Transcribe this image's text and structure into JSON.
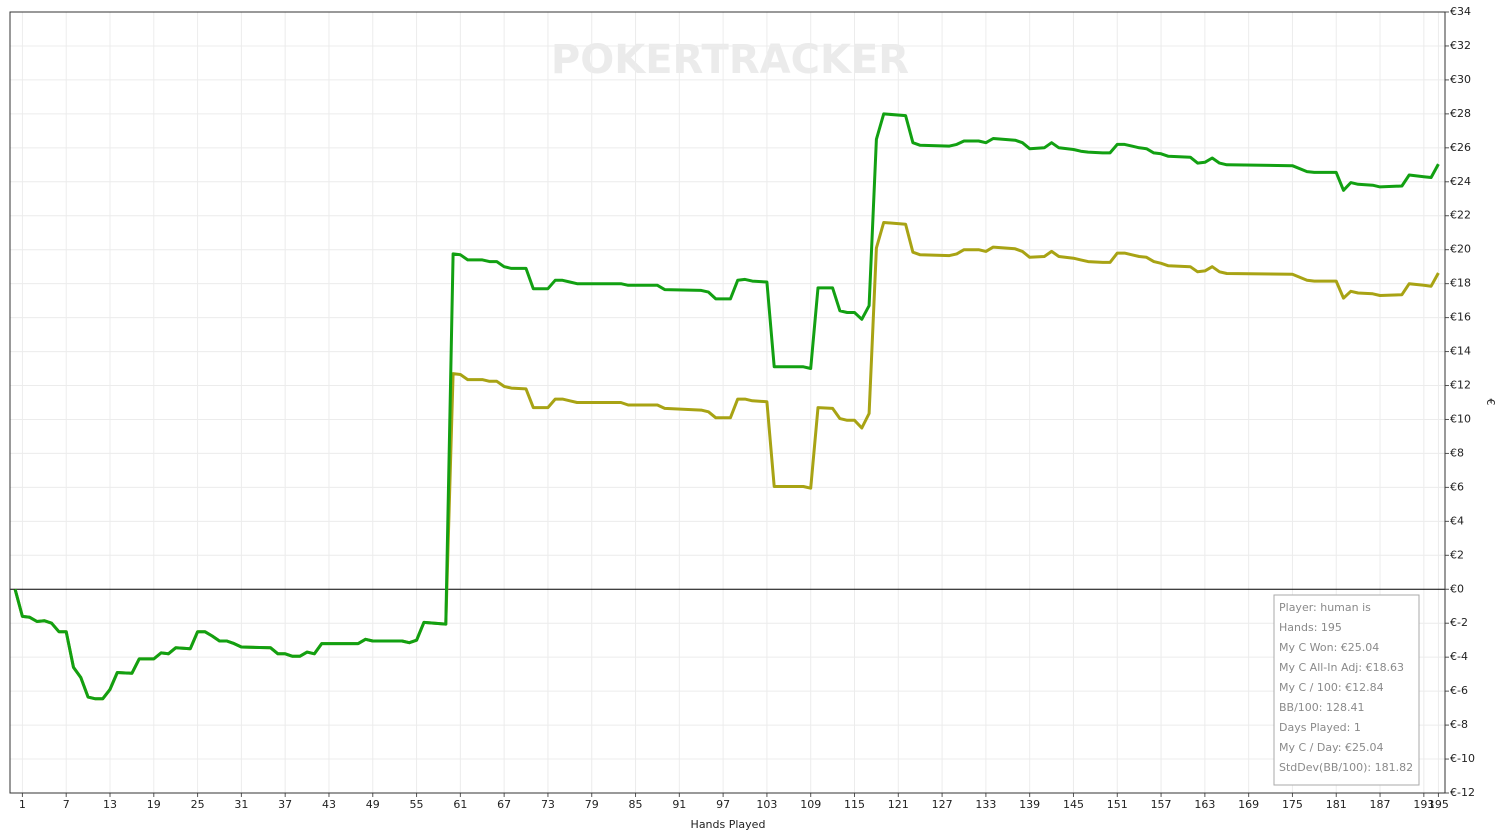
{
  "chart_data": {
    "type": "line",
    "watermark": "POKERTRACKER",
    "x_label": "Hands Played",
    "y_label": "€",
    "x": [
      0,
      1,
      2,
      3,
      4,
      5,
      6,
      7,
      8,
      9,
      10,
      11,
      12,
      13,
      14,
      16,
      17,
      19,
      20,
      21,
      22,
      24,
      25,
      26,
      27,
      28,
      29,
      30,
      31,
      35,
      36,
      37,
      38,
      39,
      40,
      41,
      42,
      47,
      48,
      49,
      53,
      54,
      55,
      56,
      59,
      60,
      61,
      62,
      64,
      65,
      66,
      67,
      68,
      70,
      71,
      73,
      74,
      75,
      76,
      77,
      83,
      84,
      88,
      89,
      94,
      95,
      96,
      98,
      99,
      100,
      101,
      103,
      104,
      108,
      109,
      110,
      112,
      113,
      114,
      115,
      116,
      117,
      118,
      119,
      122,
      123,
      124,
      128,
      129,
      130,
      132,
      133,
      134,
      137,
      138,
      139,
      141,
      142,
      143,
      145,
      146,
      147,
      149,
      150,
      151,
      152,
      153,
      154,
      155,
      156,
      157,
      158,
      161,
      162,
      163,
      164,
      165,
      166,
      175,
      177,
      178,
      181,
      182,
      183,
      184,
      186,
      187,
      190,
      191,
      193,
      194,
      195
    ],
    "series": [
      {
        "color": "#a8a314",
        "values": [
          0,
          -1.6,
          -1.65,
          -1.9,
          -1.85,
          -2.0,
          -2.5,
          -2.5,
          -4.6,
          -5.2,
          -6.35,
          -6.45,
          -6.45,
          -5.9,
          -4.9,
          -4.95,
          -4.1,
          -4.1,
          -3.75,
          -3.8,
          -3.45,
          -3.5,
          -2.5,
          -2.5,
          -2.75,
          -3.05,
          -3.05,
          -3.2,
          -3.4,
          -3.45,
          -3.8,
          -3.8,
          -3.95,
          -3.95,
          -3.7,
          -3.8,
          -3.2,
          -3.2,
          -2.95,
          -3.05,
          -3.05,
          -3.15,
          -3.0,
          -1.95,
          -2.05,
          12.7,
          12.65,
          12.35,
          12.35,
          12.25,
          12.25,
          11.95,
          11.85,
          11.8,
          10.7,
          10.7,
          11.2,
          11.2,
          11.1,
          11.0,
          11.0,
          10.85,
          10.85,
          10.65,
          10.55,
          10.45,
          10.1,
          10.1,
          11.2,
          11.2,
          11.1,
          11.05,
          6.05,
          6.05,
          5.95,
          10.7,
          10.65,
          10.05,
          9.95,
          9.95,
          9.5,
          10.35,
          20.1,
          21.6,
          21.5,
          19.85,
          19.7,
          19.65,
          19.75,
          20.0,
          20.0,
          19.9,
          20.15,
          20.05,
          19.9,
          19.55,
          19.6,
          19.9,
          19.6,
          19.5,
          19.4,
          19.3,
          19.25,
          19.25,
          19.8,
          19.8,
          19.7,
          19.6,
          19.55,
          19.3,
          19.2,
          19.05,
          19.0,
          18.7,
          18.75,
          19.0,
          18.7,
          18.6,
          18.55,
          18.2,
          18.15,
          18.15,
          17.15,
          17.55,
          17.45,
          17.4,
          17.3,
          17.35,
          18.0,
          17.9,
          17.85,
          18.63
        ]
      },
      {
        "color": "#12a012",
        "values": [
          0,
          -1.6,
          -1.65,
          -1.9,
          -1.85,
          -2.0,
          -2.5,
          -2.5,
          -4.6,
          -5.2,
          -6.35,
          -6.45,
          -6.45,
          -5.9,
          -4.9,
          -4.95,
          -4.1,
          -4.1,
          -3.75,
          -3.8,
          -3.45,
          -3.5,
          -2.5,
          -2.5,
          -2.75,
          -3.05,
          -3.05,
          -3.2,
          -3.4,
          -3.45,
          -3.8,
          -3.8,
          -3.95,
          -3.95,
          -3.7,
          -3.8,
          -3.2,
          -3.2,
          -2.95,
          -3.05,
          -3.05,
          -3.15,
          -3.0,
          -1.95,
          -2.05,
          19.75,
          19.7,
          19.4,
          19.4,
          19.3,
          19.3,
          19.0,
          18.9,
          18.9,
          17.7,
          17.7,
          18.2,
          18.2,
          18.1,
          18.0,
          18.0,
          17.9,
          17.9,
          17.65,
          17.6,
          17.5,
          17.1,
          17.1,
          18.2,
          18.25,
          18.15,
          18.1,
          13.1,
          13.1,
          13.0,
          17.75,
          17.75,
          16.4,
          16.3,
          16.3,
          15.9,
          16.7,
          26.5,
          28.0,
          27.9,
          26.3,
          26.15,
          26.1,
          26.2,
          26.4,
          26.4,
          26.3,
          26.55,
          26.45,
          26.3,
          25.95,
          26.0,
          26.3,
          26.0,
          25.9,
          25.8,
          25.75,
          25.7,
          25.7,
          26.2,
          26.2,
          26.1,
          26.0,
          25.95,
          25.7,
          25.65,
          25.5,
          25.45,
          25.1,
          25.15,
          25.4,
          25.1,
          25.0,
          24.95,
          24.6,
          24.55,
          24.55,
          23.5,
          23.95,
          23.85,
          23.8,
          23.7,
          23.75,
          24.4,
          24.3,
          24.25,
          25.04
        ]
      }
    ],
    "xlim": [
      -0.7,
      195.9
    ],
    "xticks": [
      1,
      7,
      13,
      19,
      25,
      31,
      37,
      43,
      49,
      55,
      61,
      67,
      73,
      79,
      85,
      91,
      97,
      103,
      109,
      115,
      121,
      127,
      133,
      139,
      145,
      151,
      157,
      163,
      169,
      175,
      181,
      187,
      193,
      195
    ],
    "ylim": [
      -12,
      34
    ],
    "yticks": [
      {
        "value": 34,
        "label": "€34"
      },
      {
        "value": 32,
        "label": "€32"
      },
      {
        "value": 30,
        "label": "€30"
      },
      {
        "value": 28,
        "label": "€28"
      },
      {
        "value": 26,
        "label": "€26"
      },
      {
        "value": 24,
        "label": "€24"
      },
      {
        "value": 22,
        "label": "€22"
      },
      {
        "value": 20,
        "label": "€20"
      },
      {
        "value": 18,
        "label": "€18"
      },
      {
        "value": 16,
        "label": "€16"
      },
      {
        "value": 14,
        "label": "€14"
      },
      {
        "value": 12,
        "label": "€12"
      },
      {
        "value": 10,
        "label": "€10"
      },
      {
        "value": 8,
        "label": "€8"
      },
      {
        "value": 6,
        "label": "€6"
      },
      {
        "value": 4,
        "label": "€4"
      },
      {
        "value": 2,
        "label": "€2"
      },
      {
        "value": 0,
        "label": "€0"
      },
      {
        "value": -2,
        "label": "€-2"
      },
      {
        "value": -4,
        "label": "€-4"
      },
      {
        "value": -6,
        "label": "€-6"
      },
      {
        "value": -8,
        "label": "€-8"
      },
      {
        "value": -10,
        "label": "€-10"
      },
      {
        "value": -12,
        "label": "€-12"
      }
    ],
    "grid": true,
    "info_box": [
      "Player: human is",
      "Hands: 195",
      "My C Won: €25.04",
      "My C All-In Adj: €18.63",
      "My C / 100: €12.84",
      "BB/100: 128.41",
      "Days Played: 1",
      "My C / Day: €25.04",
      "StdDev(BB/100): 181.82"
    ]
  }
}
